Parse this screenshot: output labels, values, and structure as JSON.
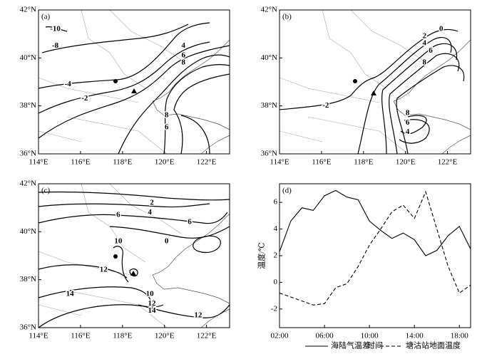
{
  "chart_data": [
    {
      "type": "map",
      "label": "(a)",
      "xlim": [
        114,
        123.1
      ],
      "ylim": [
        36,
        42
      ],
      "xticks": [
        {
          "value": 114,
          "label": "114°E"
        },
        {
          "value": 116,
          "label": "116°E"
        },
        {
          "value": 118,
          "label": "118°E"
        },
        {
          "value": 120,
          "label": "120°E"
        },
        {
          "value": 122,
          "label": "122°E"
        }
      ],
      "yticks": [
        {
          "value": 36,
          "label": "36°N"
        },
        {
          "value": 38,
          "label": "38°N"
        },
        {
          "value": 40,
          "label": "40°N"
        },
        {
          "value": 42,
          "label": "42°N"
        }
      ],
      "contour_labels": [
        {
          "value": -10,
          "x": 114.8,
          "y": 41.2
        },
        {
          "value": -8,
          "x": 114.8,
          "y": 40.5
        },
        {
          "value": -4,
          "x": 115.4,
          "y": 38.9
        },
        {
          "value": -2,
          "x": 116.2,
          "y": 38.3
        },
        {
          "value": 4,
          "x": 120.9,
          "y": 40.5
        },
        {
          "value": 6,
          "x": 120.9,
          "y": 40.1
        },
        {
          "value": 8,
          "x": 120.9,
          "y": 39.8
        },
        {
          "value": 8,
          "x": 120.1,
          "y": 37.6
        },
        {
          "value": 6,
          "x": 120.1,
          "y": 37.1
        }
      ]
    },
    {
      "type": "map",
      "label": "(b)",
      "xlim": [
        114,
        123.1
      ],
      "ylim": [
        36,
        42
      ],
      "xticks": [
        {
          "value": 114,
          "label": "114°E"
        },
        {
          "value": 116,
          "label": "116°E"
        },
        {
          "value": 118,
          "label": "118°E"
        },
        {
          "value": 120,
          "label": "120°E"
        },
        {
          "value": 122,
          "label": "122°E"
        }
      ],
      "yticks": [
        {
          "value": 36,
          "label": "36°N"
        },
        {
          "value": 38,
          "label": "38°N"
        },
        {
          "value": 40,
          "label": "40°N"
        },
        {
          "value": 42,
          "label": "42°N"
        }
      ],
      "contour_labels": [
        {
          "value": 0,
          "x": 121.7,
          "y": 41.2
        },
        {
          "value": 2,
          "x": 120.9,
          "y": 40.9
        },
        {
          "value": 4,
          "x": 120.9,
          "y": 40.6
        },
        {
          "value": 6,
          "x": 121.2,
          "y": 40.3
        },
        {
          "value": 8,
          "x": 120.9,
          "y": 39.8
        },
        {
          "value": -2,
          "x": 116.2,
          "y": 38.0
        },
        {
          "value": 8,
          "x": 120.1,
          "y": 37.7
        },
        {
          "value": 6,
          "x": 120.1,
          "y": 37.3
        },
        {
          "value": 4,
          "x": 120.1,
          "y": 36.9
        }
      ]
    },
    {
      "type": "map",
      "label": "(c)",
      "xlim": [
        114,
        123.1
      ],
      "ylim": [
        36,
        42
      ],
      "xticks": [
        {
          "value": 114,
          "label": "114°E"
        },
        {
          "value": 116,
          "label": "116°E"
        },
        {
          "value": 118,
          "label": "118°E"
        },
        {
          "value": 120,
          "label": "120°E"
        },
        {
          "value": 122,
          "label": "122°E"
        }
      ],
      "yticks": [
        {
          "value": 36,
          "label": "36°N"
        },
        {
          "value": 38,
          "label": "38°N"
        },
        {
          "value": 40,
          "label": "40°N"
        },
        {
          "value": 42,
          "label": "42°N"
        }
      ],
      "contour_labels": [
        {
          "value": 2,
          "x": 119.4,
          "y": 41.2
        },
        {
          "value": 4,
          "x": 119.3,
          "y": 40.8
        },
        {
          "value": 6,
          "x": 117.8,
          "y": 40.7
        },
        {
          "value": 6,
          "x": 121.2,
          "y": 40.4
        },
        {
          "value": 0,
          "x": 120.1,
          "y": 39.6
        },
        {
          "value": 10,
          "x": 117.8,
          "y": 39.6
        },
        {
          "value": 12,
          "x": 117.1,
          "y": 38.4
        },
        {
          "value": 14,
          "x": 115.5,
          "y": 37.4
        },
        {
          "value": 10,
          "x": 119.3,
          "y": 37.4
        },
        {
          "value": 12,
          "x": 119.4,
          "y": 37.0
        },
        {
          "value": 14,
          "x": 119.4,
          "y": 36.7
        },
        {
          "value": 12,
          "x": 121.6,
          "y": 36.5
        }
      ]
    },
    {
      "type": "line",
      "label": "(d)",
      "x_label": "时间",
      "y_label": "温度/℃",
      "x": [
        2,
        3,
        4,
        5,
        6,
        7,
        8,
        9,
        10,
        11,
        12,
        13,
        14,
        15,
        16,
        17,
        18,
        19
      ],
      "xlim": [
        2,
        19
      ],
      "ylim": [
        -3.4,
        7.4
      ],
      "xticks": [
        {
          "value": 2,
          "label": "02:00"
        },
        {
          "value": 6,
          "label": "06:00"
        },
        {
          "value": 10,
          "label": "10:00"
        },
        {
          "value": 14,
          "label": "14:00"
        },
        {
          "value": 18,
          "label": "18:00"
        }
      ],
      "yticks": [
        -2,
        0,
        2,
        4,
        6
      ],
      "series": [
        {
          "name": "海陆气温差;",
          "color": "#000000",
          "dash": false,
          "values": [
            2.3,
            4.6,
            5.6,
            5.4,
            6.5,
            6.9,
            6.4,
            6.2,
            4.6,
            3.9,
            3.3,
            3.7,
            3.2,
            2.0,
            2.4,
            3.5,
            4.2,
            2.5
          ]
        },
        {
          "name": "塘沽站地面温度",
          "color": "#000000",
          "dash": true,
          "values": [
            -0.8,
            -1.1,
            -1.4,
            -1.7,
            -1.6,
            -0.4,
            -0.1,
            1.2,
            2.8,
            4.0,
            5.3,
            5.8,
            4.8,
            6.8,
            4.0,
            1.2,
            -0.8,
            -0.2
          ]
        }
      ]
    }
  ]
}
